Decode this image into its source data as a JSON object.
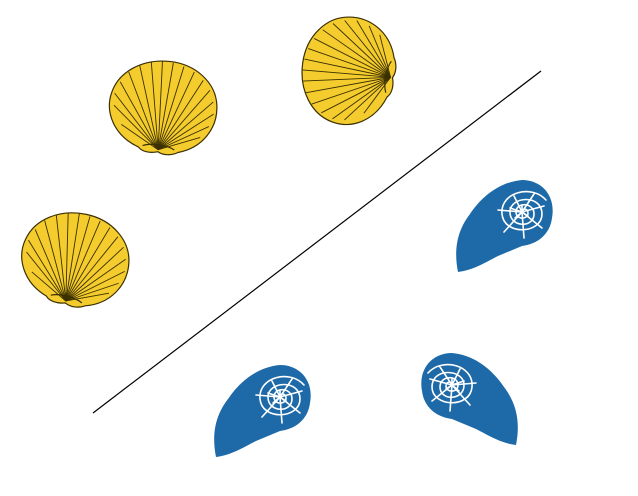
{
  "colors": {
    "background": "#ffffff",
    "scallop_fill": "#f5cc2e",
    "scallop_stroke": "#3a3000",
    "nautilus_fill": "#1e6aa8",
    "nautilus_lines": "#ffffff",
    "divider": "#000000"
  },
  "groups": {
    "yellow": {
      "shape": "scallop-shell",
      "count": 3
    },
    "blue": {
      "shape": "nautilus-shell",
      "count": 3
    }
  },
  "icons": [
    "scallop-shell-icon",
    "nautilus-shell-icon",
    "divider-line"
  ]
}
